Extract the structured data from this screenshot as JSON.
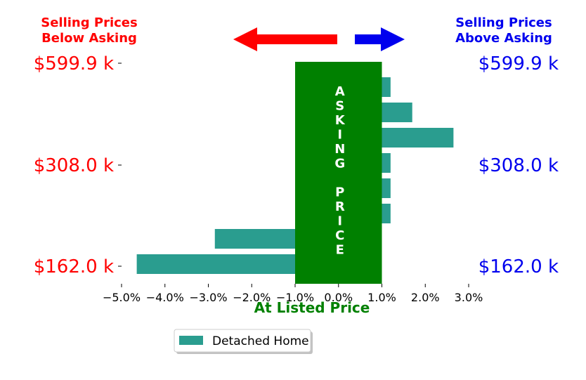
{
  "header": {
    "left_line1": "Selling Prices",
    "left_line2": "Below Asking",
    "right_line1": "Selling Prices",
    "right_line2": "Above Asking"
  },
  "colors": {
    "below": "#ff0000",
    "above": "#0000ee",
    "bar": "#2a9d8f",
    "asking_band": "#008000"
  },
  "asking_band": {
    "text": "ASKING PRICE",
    "from": -1.0,
    "to": 1.0
  },
  "chart_data": {
    "type": "bar",
    "orientation": "horizontal",
    "xlabel": "At Listed Price",
    "xlim": [
      -5.0,
      3.0
    ],
    "xticks": [
      -5.0,
      -4.0,
      -3.0,
      -2.0,
      -1.0,
      0.0,
      1.0,
      2.0,
      3.0
    ],
    "xtick_labels": [
      "−5.0%",
      "−4.0%",
      "−3.0%",
      "−2.0%",
      "−1.0%",
      "0.0%",
      "1.0%",
      "2.0%",
      "3.0%"
    ],
    "y_labels_left": [
      "$599.9 k",
      "$308.0 k",
      "$162.0 k"
    ],
    "y_labels_right": [
      "$599.9 k",
      "$308.0 k",
      "$162.0 k"
    ],
    "series": [
      {
        "name": "Detached Home",
        "values": [
          1.2,
          1.7,
          2.65,
          1.2,
          1.2,
          1.2,
          -2.85,
          -4.65
        ]
      }
    ],
    "legend": "bottom-center"
  }
}
